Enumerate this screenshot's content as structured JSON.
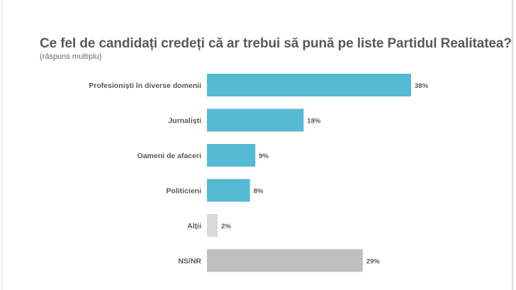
{
  "chart_data": {
    "type": "bar",
    "orientation": "horizontal",
    "title": "Ce fel de candidați credeți că ar trebui să pună pe liste Partidul Realitatea?",
    "subtitle": "(răspuns multiplu)",
    "categories": [
      "Profesioniști în diverse domenii",
      "Jurnaliști",
      "Oameni de afaceri",
      "Politicieni",
      "Alții",
      "NS/NR"
    ],
    "values": [
      38,
      18,
      9,
      8,
      2,
      29
    ],
    "value_labels": [
      "38%",
      "18%",
      "9%",
      "8%",
      "2%",
      "29%"
    ],
    "unit": "%",
    "colors": [
      "#56b9d2",
      "#56b9d2",
      "#56b9d2",
      "#56b9d2",
      "#d9d9d9",
      "#bfbfbf"
    ],
    "xlim": [
      0,
      38
    ],
    "grid": false,
    "axes_visible": false
  }
}
